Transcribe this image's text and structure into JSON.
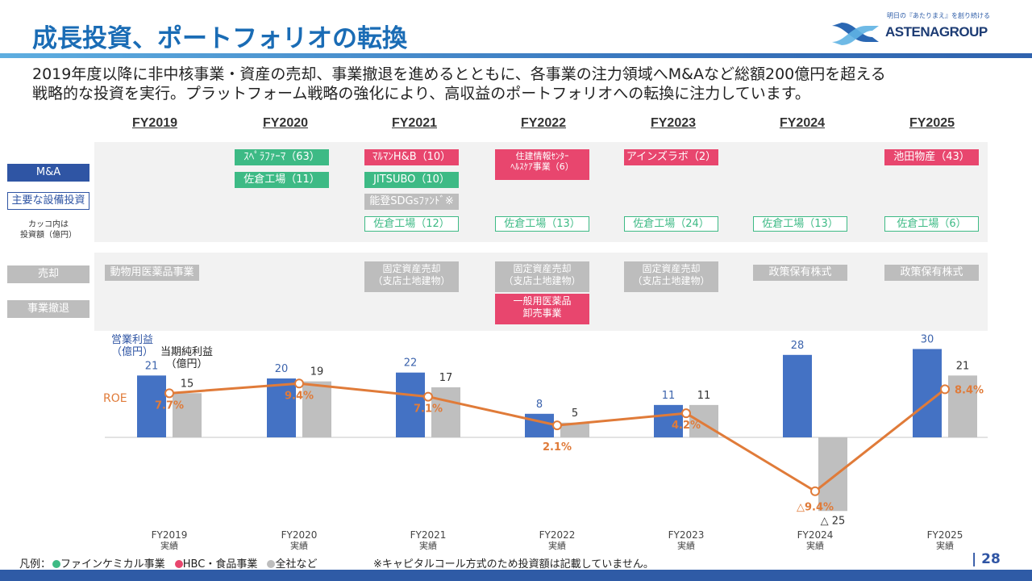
{
  "header": {
    "title": "成長投資、ポートフォリオの転換",
    "logo_tagline": "明日の『あたりまえ』を創り続ける",
    "logo_word": "ASTENAGROUP"
  },
  "lead": {
    "line1": "2019年度以降に非中核事業・資産の売却、事業撤退を進めるとともに、各事業の注力領域へM&Aなど総額200億円を超える",
    "line2": "戦略的な投資を実行。プラットフォーム戦略の強化により、高収益のポートフォリオへの転換に注力しています。"
  },
  "years": [
    "FY2019",
    "FY2020",
    "FY2021",
    "FY2022",
    "FY2023",
    "FY2024",
    "FY2025"
  ],
  "row_labels": {
    "ma": "M&A",
    "capex": "主要な設備投資",
    "note_line1": "カッコ内は",
    "note_line2": "投資額（億円）",
    "sale": "売却",
    "exit": "事業撤退"
  },
  "investments": {
    "fy2020": {
      "ma1": "ｽﾍﾟﾗﾌｧｰﾏ（63）",
      "ma2": "佐倉工場（11）"
    },
    "fy2021": {
      "ma1": "ﾏﾙﾏﾝH&B（10）",
      "ma2": "JITSUBO（10）",
      "ma3": "能登SDGsﾌｧﾝﾄﾞ※",
      "capex": "佐倉工場（12）"
    },
    "fy2022": {
      "ma1_line1": "住建情報ｾﾝﾀｰ",
      "ma1_line2": "ﾍﾙｽｹｱ事業（6）",
      "capex": "佐倉工場（13）"
    },
    "fy2023": {
      "ma1": "アインズラボ（2）",
      "capex": "佐倉工場（24）"
    },
    "fy2024": {
      "capex": "佐倉工場（13）"
    },
    "fy2025": {
      "ma1": "池田物産（43）",
      "capex": "佐倉工場（6）"
    }
  },
  "divestments": {
    "fy2019": {
      "sale": "動物用医薬品事業"
    },
    "fy2021": {
      "sale_line1": "固定資産売却",
      "sale_line2": "（支店土地建物）"
    },
    "fy2022": {
      "sale_line1": "固定資産売却",
      "sale_line2": "（支店土地建物）",
      "exit_line1": "一般用医薬品",
      "exit_line2": "卸売事業"
    },
    "fy2023": {
      "sale_line1": "固定資産売却",
      "sale_line2": "（支店土地建物）"
    },
    "fy2024": {
      "sale": "政策保有株式"
    },
    "fy2025": {
      "sale": "政策保有株式"
    }
  },
  "chart_data": {
    "type": "bar",
    "categories": [
      "FY2019",
      "FY2020",
      "FY2021",
      "FY2022",
      "FY2023",
      "FY2024",
      "FY2025"
    ],
    "category_sublabel": "実績",
    "series": [
      {
        "name": "営業利益（億円）",
        "type": "bar",
        "color": "#4472c4",
        "values": [
          21,
          20,
          22,
          8,
          11,
          28,
          30
        ],
        "labels": [
          "21",
          "20",
          "22",
          "8",
          "11",
          "28",
          "30"
        ]
      },
      {
        "name": "当期純利益（億円）",
        "type": "bar",
        "color": "#bfbfbf",
        "values": [
          15,
          19,
          17,
          5,
          11,
          -25,
          21
        ],
        "labels": [
          "15",
          "19",
          "17",
          "5",
          "11",
          "△ 25",
          "21"
        ]
      },
      {
        "name": "ROE",
        "type": "line",
        "color": "#e07b39",
        "values": [
          7.7,
          9.4,
          7.1,
          2.1,
          4.2,
          -9.4,
          8.4
        ],
        "labels": [
          "7.7%",
          "9.4%",
          "7.1%",
          "2.1%",
          "4.2%",
          "△9.4%",
          "8.4%"
        ]
      }
    ],
    "axis_labels": {
      "op_profit_line1": "営業利益",
      "op_profit_line2": "（億円）",
      "net_income_line1": "当期純利益",
      "net_income_line2": "（億円）",
      "roe": "ROE"
    },
    "grid": false
  },
  "footer": {
    "legend_prefix": "凡例：",
    "legend_items": [
      {
        "label": "ファインケミカル事業",
        "color": "#3dba85"
      },
      {
        "label": "HBC・食品事業",
        "color": "#e8466e"
      },
      {
        "label": "全社など",
        "color": "#bdbdbd"
      }
    ],
    "footnote": "※キャピタルコール方式のため投資額は記載していません。",
    "page_number": "| 28"
  }
}
